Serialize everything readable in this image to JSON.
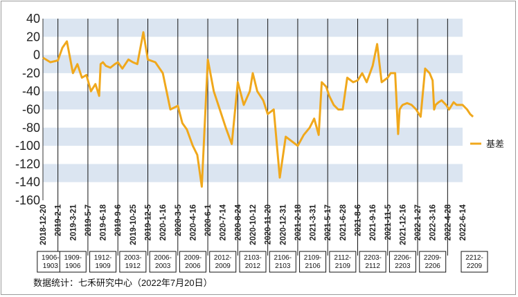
{
  "chart_data": {
    "type": "line",
    "title": "",
    "xlabel": "",
    "ylabel": "",
    "ylim": [
      -160,
      40
    ],
    "yticks": [
      40,
      20,
      0,
      -20,
      -40,
      -60,
      -80,
      -100,
      -120,
      -140,
      -160
    ],
    "x_tick_labels": [
      "2018-12-20",
      "2019-2-1",
      "2019-3-21",
      "2019-5-7",
      "2019-6-18",
      "2019-9-6",
      "2019-10-25",
      "2019-12-5",
      "2020-1-16",
      "2020-3-5",
      "2020-4-16",
      "2020-6-1",
      "2020-7-14",
      "2020-8-24",
      "2020-10-12",
      "2020-11-20",
      "2020-12-31",
      "2021-2-18",
      "2021-3-31",
      "2021-5-17",
      "2021-6-28",
      "2021-8-6",
      "2021-9-16",
      "2021-11-5",
      "2021-12-16",
      "2022-1-27",
      "2022-3-16",
      "2022-4-28",
      "2022-6-14"
    ],
    "grid": "alternating horizontal bands",
    "legend_position": "right",
    "series": [
      {
        "name": "基差",
        "color": "#f0a81c",
        "x": [
          0,
          0.5,
          1,
          1.3,
          1.6,
          2,
          2.3,
          2.6,
          2.9,
          3.2,
          3.5,
          3.75,
          3.85,
          4,
          4.2,
          4.5,
          4.8,
          5,
          5.3,
          5.7,
          6,
          6.3,
          6.7,
          7,
          7.5,
          8,
          8.5,
          9,
          9.3,
          9.6,
          10,
          10.3,
          10.6,
          11,
          11.4,
          11.8,
          12.2,
          12.6,
          13,
          13.4,
          13.8,
          14,
          14.3,
          14.7,
          15,
          15.4,
          15.8,
          16.2,
          16.6,
          17,
          17.4,
          17.8,
          18.1,
          18.4,
          18.6,
          18.9,
          19.1,
          19.4,
          19.7,
          20,
          20.3,
          20.7,
          21,
          21.3,
          21.6,
          22,
          22.3,
          22.6,
          23,
          23.2,
          23.5,
          23.7,
          23.8,
          23.9,
          24,
          24.3,
          24.6,
          24.9,
          25.2,
          25.5,
          25.8,
          26,
          26.1,
          26.2,
          26.4,
          26.6,
          26.9,
          27.1,
          27.4,
          27.6,
          28,
          28.3,
          28.5,
          28.7
        ],
        "y": [
          -3,
          -8,
          -6,
          8,
          15,
          -20,
          -10,
          -25,
          -22,
          -40,
          -32,
          -45,
          -10,
          -8,
          -12,
          -14,
          -10,
          -8,
          -15,
          -5,
          -8,
          -10,
          25,
          -5,
          -8,
          -20,
          -60,
          -56,
          -75,
          -82,
          -100,
          -110,
          -145,
          -5,
          -40,
          -60,
          -80,
          -98,
          -30,
          -55,
          -40,
          -20,
          -40,
          -50,
          -65,
          -60,
          -135,
          -90,
          -95,
          -100,
          -88,
          -80,
          -70,
          -88,
          -30,
          -35,
          -45,
          -55,
          -60,
          -60,
          -25,
          -30,
          -28,
          -20,
          -30,
          -12,
          12,
          -30,
          -25,
          -20,
          -20,
          -87,
          -60,
          -57,
          -55,
          -53,
          -55,
          -60,
          -68,
          -15,
          -20,
          -28,
          -60,
          -55,
          -52,
          -50,
          -55,
          -60,
          -52,
          -55,
          -55,
          -60,
          -65,
          -68
        ]
      }
    ],
    "contract_boxes": [
      "1906-1903",
      "1909-1906",
      "1912-1909",
      "2003-1912",
      "2006-2003",
      "2009-2006",
      "2012-2009",
      "2103-2012",
      "2106-2103",
      "2109-2106",
      "2112-2109",
      "2203-2112",
      "2206-2203",
      "2209-2206",
      "2212-2209"
    ],
    "contract_boxes_display": [
      [
        "1906-",
        "1903"
      ],
      [
        "1909-",
        "1906"
      ],
      [
        "1912-",
        "1909"
      ],
      [
        "2003-",
        "1912"
      ],
      [
        "2006-",
        "2003"
      ],
      [
        "2009-",
        "2006"
      ],
      [
        "2012-",
        "2009"
      ],
      [
        "2103-",
        "2012"
      ],
      [
        "2106-",
        "2103"
      ],
      [
        "2109-",
        "2106"
      ],
      [
        "2112-",
        "2109"
      ],
      [
        "2203-",
        "2112"
      ],
      [
        "2206-",
        "2203"
      ],
      [
        "2209-",
        "2206"
      ],
      [
        "2212-",
        "2209"
      ]
    ]
  },
  "source": "数据统计：七禾研究中心（2022年7月20日）"
}
